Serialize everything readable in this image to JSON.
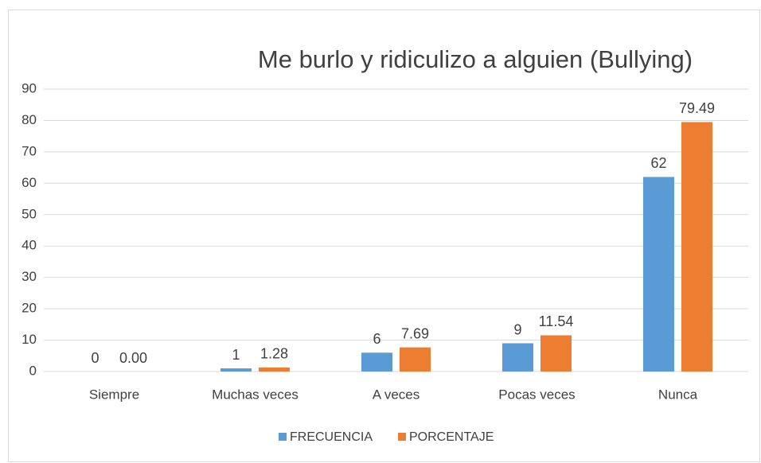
{
  "chart_data": {
    "type": "bar",
    "title": "Me burlo y ridiculizo a alguien (Bullying)",
    "categories": [
      "Siempre",
      "Muchas veces",
      "A veces",
      "Pocas veces",
      "Nunca"
    ],
    "series": [
      {
        "name": "FRECUENCIA",
        "color": "#5b9bd5",
        "values": [
          0,
          1,
          6,
          9,
          62
        ]
      },
      {
        "name": "PORCENTAJE",
        "color": "#ed7d31",
        "values": [
          0,
          1.28,
          7.69,
          11.54,
          79.49
        ],
        "value_labels": [
          "0.00",
          "1.28",
          "7.69",
          "11.54",
          "79.49"
        ]
      }
    ],
    "ylim": [
      0,
      90
    ],
    "yticks": [
      0,
      10,
      20,
      30,
      40,
      50,
      60,
      70,
      80,
      90
    ],
    "grid": true,
    "legend": "bottom"
  }
}
